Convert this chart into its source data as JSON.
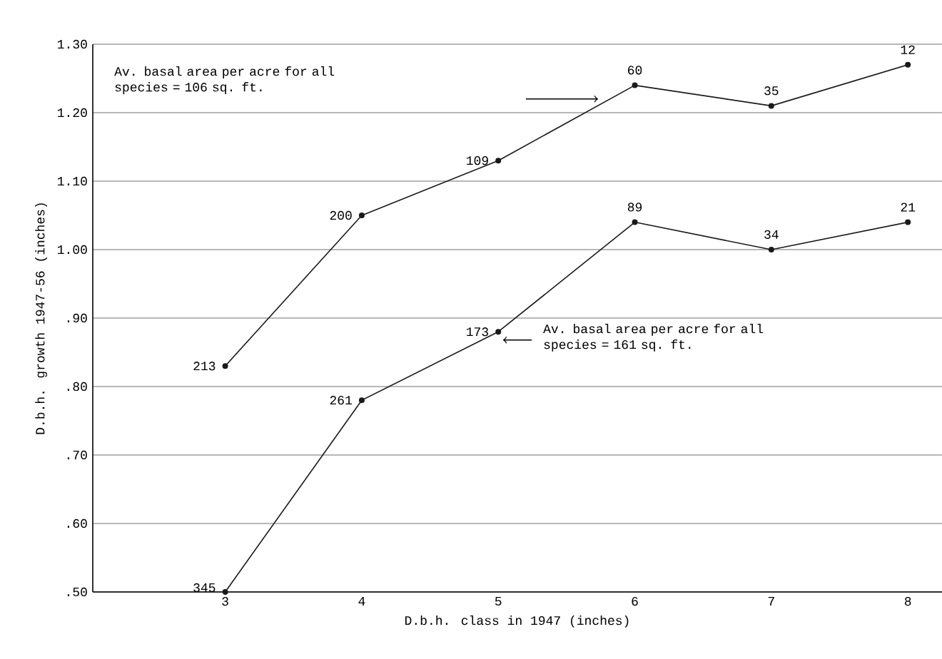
{
  "chart_data": {
    "type": "line",
    "xlabel": "D.b.h. class in 1947 (inches)",
    "ylabel": "D.b.h. growth 1947-56 (inches)",
    "x": [
      3,
      4,
      5,
      6,
      7,
      8
    ],
    "series": [
      {
        "color": "#1a1a1a",
        "values": [
          0.83,
          1.05,
          1.13,
          1.24,
          1.21,
          1.27
        ]
      },
      {
        "color": "#1a1a1a",
        "values": [
          0.5,
          0.78,
          0.88,
          1.04,
          1.0,
          1.04
        ]
      }
    ],
    "xlim": [
      2.03,
      8.25
    ],
    "ylim": [
      0.5,
      1.3
    ],
    "xticks": [
      3,
      4,
      5,
      6,
      7,
      8
    ],
    "yticks": [
      {
        "value": 0.5,
        "label": ".50"
      },
      {
        "value": 0.6,
        "label": ".60"
      },
      {
        "value": 0.7,
        "label": ".70"
      },
      {
        "value": 0.8,
        "label": ".80"
      },
      {
        "value": 0.9,
        "label": ".90"
      },
      {
        "value": 1.0,
        "label": "1.00"
      },
      {
        "value": 1.1,
        "label": "1.10"
      },
      {
        "value": 1.2,
        "label": "1.20"
      },
      {
        "value": 1.3,
        "label": "1.30"
      }
    ],
    "grid": "y",
    "marker": "circle",
    "line_style": "solid",
    "annotations": [
      "Av. basal area per acre for all species = 106 sq. ft.",
      "Av. basal area per acre for all species = 161 sq. ft.",
      {
        "text": "213",
        "x": 3,
        "y": 0.83
      },
      {
        "text": "200",
        "x": 4,
        "y": 1.05
      },
      {
        "text": "109",
        "x": 5,
        "y": 1.13
      },
      {
        "text": "60",
        "x": 6,
        "y": 1.24
      },
      {
        "text": "35",
        "x": 7,
        "y": 1.21
      },
      {
        "text": "12",
        "x": 8,
        "y": 1.27
      },
      {
        "text": "345",
        "x": 3,
        "y": 0.5
      },
      {
        "text": "261",
        "x": 4,
        "y": 0.78
      },
      {
        "text": "173",
        "x": 5,
        "y": 0.88
      },
      {
        "text": "89",
        "x": 6,
        "y": 1.04
      },
      {
        "text": "34",
        "x": 7,
        "y": 1.0
      },
      {
        "text": "21",
        "x": 8,
        "y": 1.04
      }
    ]
  }
}
